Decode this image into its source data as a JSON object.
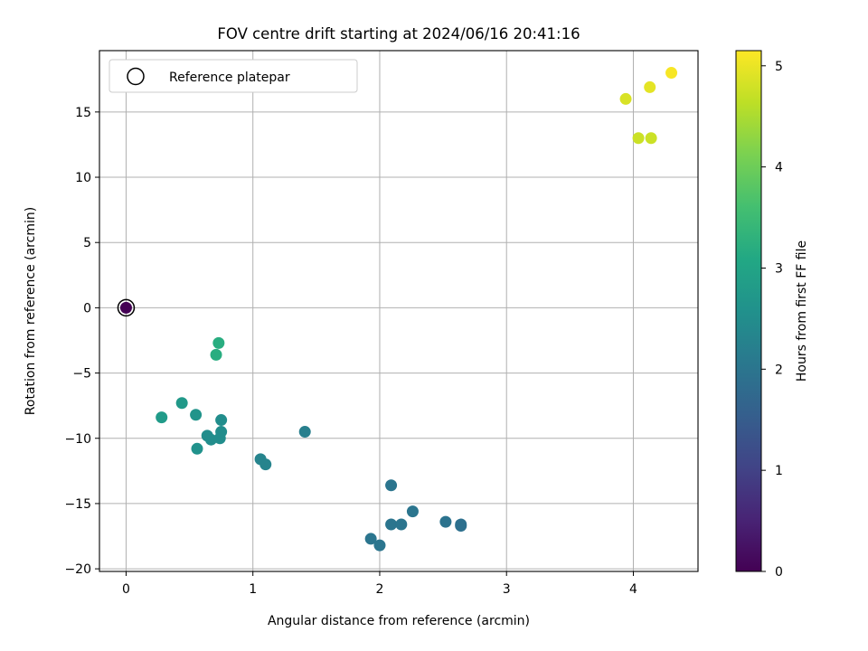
{
  "chart_data": {
    "type": "scatter",
    "title": "FOV centre drift starting at 2024/06/16 20:41:16",
    "xlabel": "Angular distance from reference (arcmin)",
    "ylabel": "Rotation from reference (arcmin)",
    "xlim": [
      -0.21,
      4.51
    ],
    "ylim": [
      -20.2,
      19.7
    ],
    "xticks": [
      0,
      1,
      2,
      3,
      4
    ],
    "yticks": [
      -20,
      -15,
      -10,
      -5,
      0,
      5,
      10,
      15
    ],
    "grid": true,
    "legend": {
      "position": "top-left",
      "entries": [
        "Reference platepar"
      ]
    },
    "colorbar": {
      "label": "Hours from first FF file",
      "range": [
        0,
        5.15
      ],
      "ticks": [
        0,
        1,
        2,
        3,
        4,
        5
      ],
      "colormap": "viridis"
    },
    "reference_point": {
      "x": 0,
      "y": 0
    },
    "points": [
      {
        "x": 0.0,
        "y": 0.0,
        "c": 0.0
      },
      {
        "x": 1.93,
        "y": -17.7,
        "c": 2.0
      },
      {
        "x": 2.0,
        "y": -18.2,
        "c": 2.0
      },
      {
        "x": 2.09,
        "y": -16.6,
        "c": 2.0
      },
      {
        "x": 2.17,
        "y": -16.6,
        "c": 2.0
      },
      {
        "x": 2.26,
        "y": -15.6,
        "c": 2.0
      },
      {
        "x": 2.09,
        "y": -13.6,
        "c": 2.0
      },
      {
        "x": 2.52,
        "y": -16.4,
        "c": 1.95
      },
      {
        "x": 2.64,
        "y": -16.6,
        "c": 1.9
      },
      {
        "x": 2.64,
        "y": -16.7,
        "c": 1.9
      },
      {
        "x": 1.41,
        "y": -9.5,
        "c": 2.2
      },
      {
        "x": 1.1,
        "y": -12.0,
        "c": 2.3
      },
      {
        "x": 1.06,
        "y": -11.6,
        "c": 2.3
      },
      {
        "x": 0.75,
        "y": -8.6,
        "c": 2.5
      },
      {
        "x": 0.75,
        "y": -9.5,
        "c": 2.5
      },
      {
        "x": 0.74,
        "y": -10.0,
        "c": 2.5
      },
      {
        "x": 0.64,
        "y": -9.8,
        "c": 2.5
      },
      {
        "x": 0.67,
        "y": -10.1,
        "c": 2.5
      },
      {
        "x": 0.56,
        "y": -10.8,
        "c": 2.6
      },
      {
        "x": 0.55,
        "y": -8.2,
        "c": 2.65
      },
      {
        "x": 0.44,
        "y": -7.3,
        "c": 2.75
      },
      {
        "x": 0.28,
        "y": -8.4,
        "c": 2.8
      },
      {
        "x": 0.71,
        "y": -3.6,
        "c": 3.2
      },
      {
        "x": 0.73,
        "y": -2.7,
        "c": 3.2
      },
      {
        "x": 3.94,
        "y": 16.0,
        "c": 4.85
      },
      {
        "x": 4.13,
        "y": 16.9,
        "c": 4.95
      },
      {
        "x": 4.3,
        "y": 18.0,
        "c": 5.1
      },
      {
        "x": 4.04,
        "y": 13.0,
        "c": 4.75
      },
      {
        "x": 4.14,
        "y": 13.0,
        "c": 4.75
      }
    ]
  }
}
